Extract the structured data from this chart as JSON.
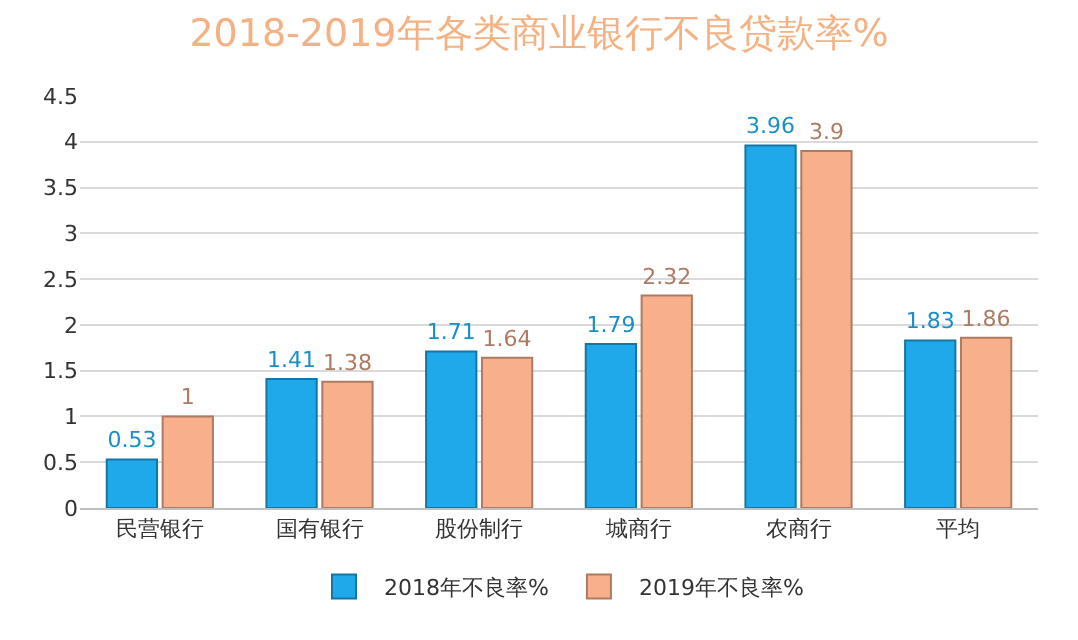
{
  "chart_data": {
    "type": "bar",
    "title": "2018-2019年各类商业银行不良贷款率%",
    "categories": [
      "民营银行",
      "国有银行",
      "股份制行",
      "城商行",
      "农商行",
      "平均"
    ],
    "series": [
      {
        "name": "2018年不良率%",
        "color": "#1fa9ea",
        "values": [
          0.53,
          1.41,
          1.71,
          1.79,
          3.96,
          1.83
        ]
      },
      {
        "name": "2019年不良率%",
        "color": "#f8b08c",
        "values": [
          1,
          1.38,
          1.64,
          2.32,
          3.9,
          1.86
        ]
      }
    ],
    "ylim": [
      0,
      4.5
    ],
    "yticks": [
      0,
      0.5,
      1,
      1.5,
      2,
      2.5,
      3,
      3.5,
      4,
      4.5
    ],
    "grid": "y",
    "legend": "bottom",
    "data_labels": true
  }
}
